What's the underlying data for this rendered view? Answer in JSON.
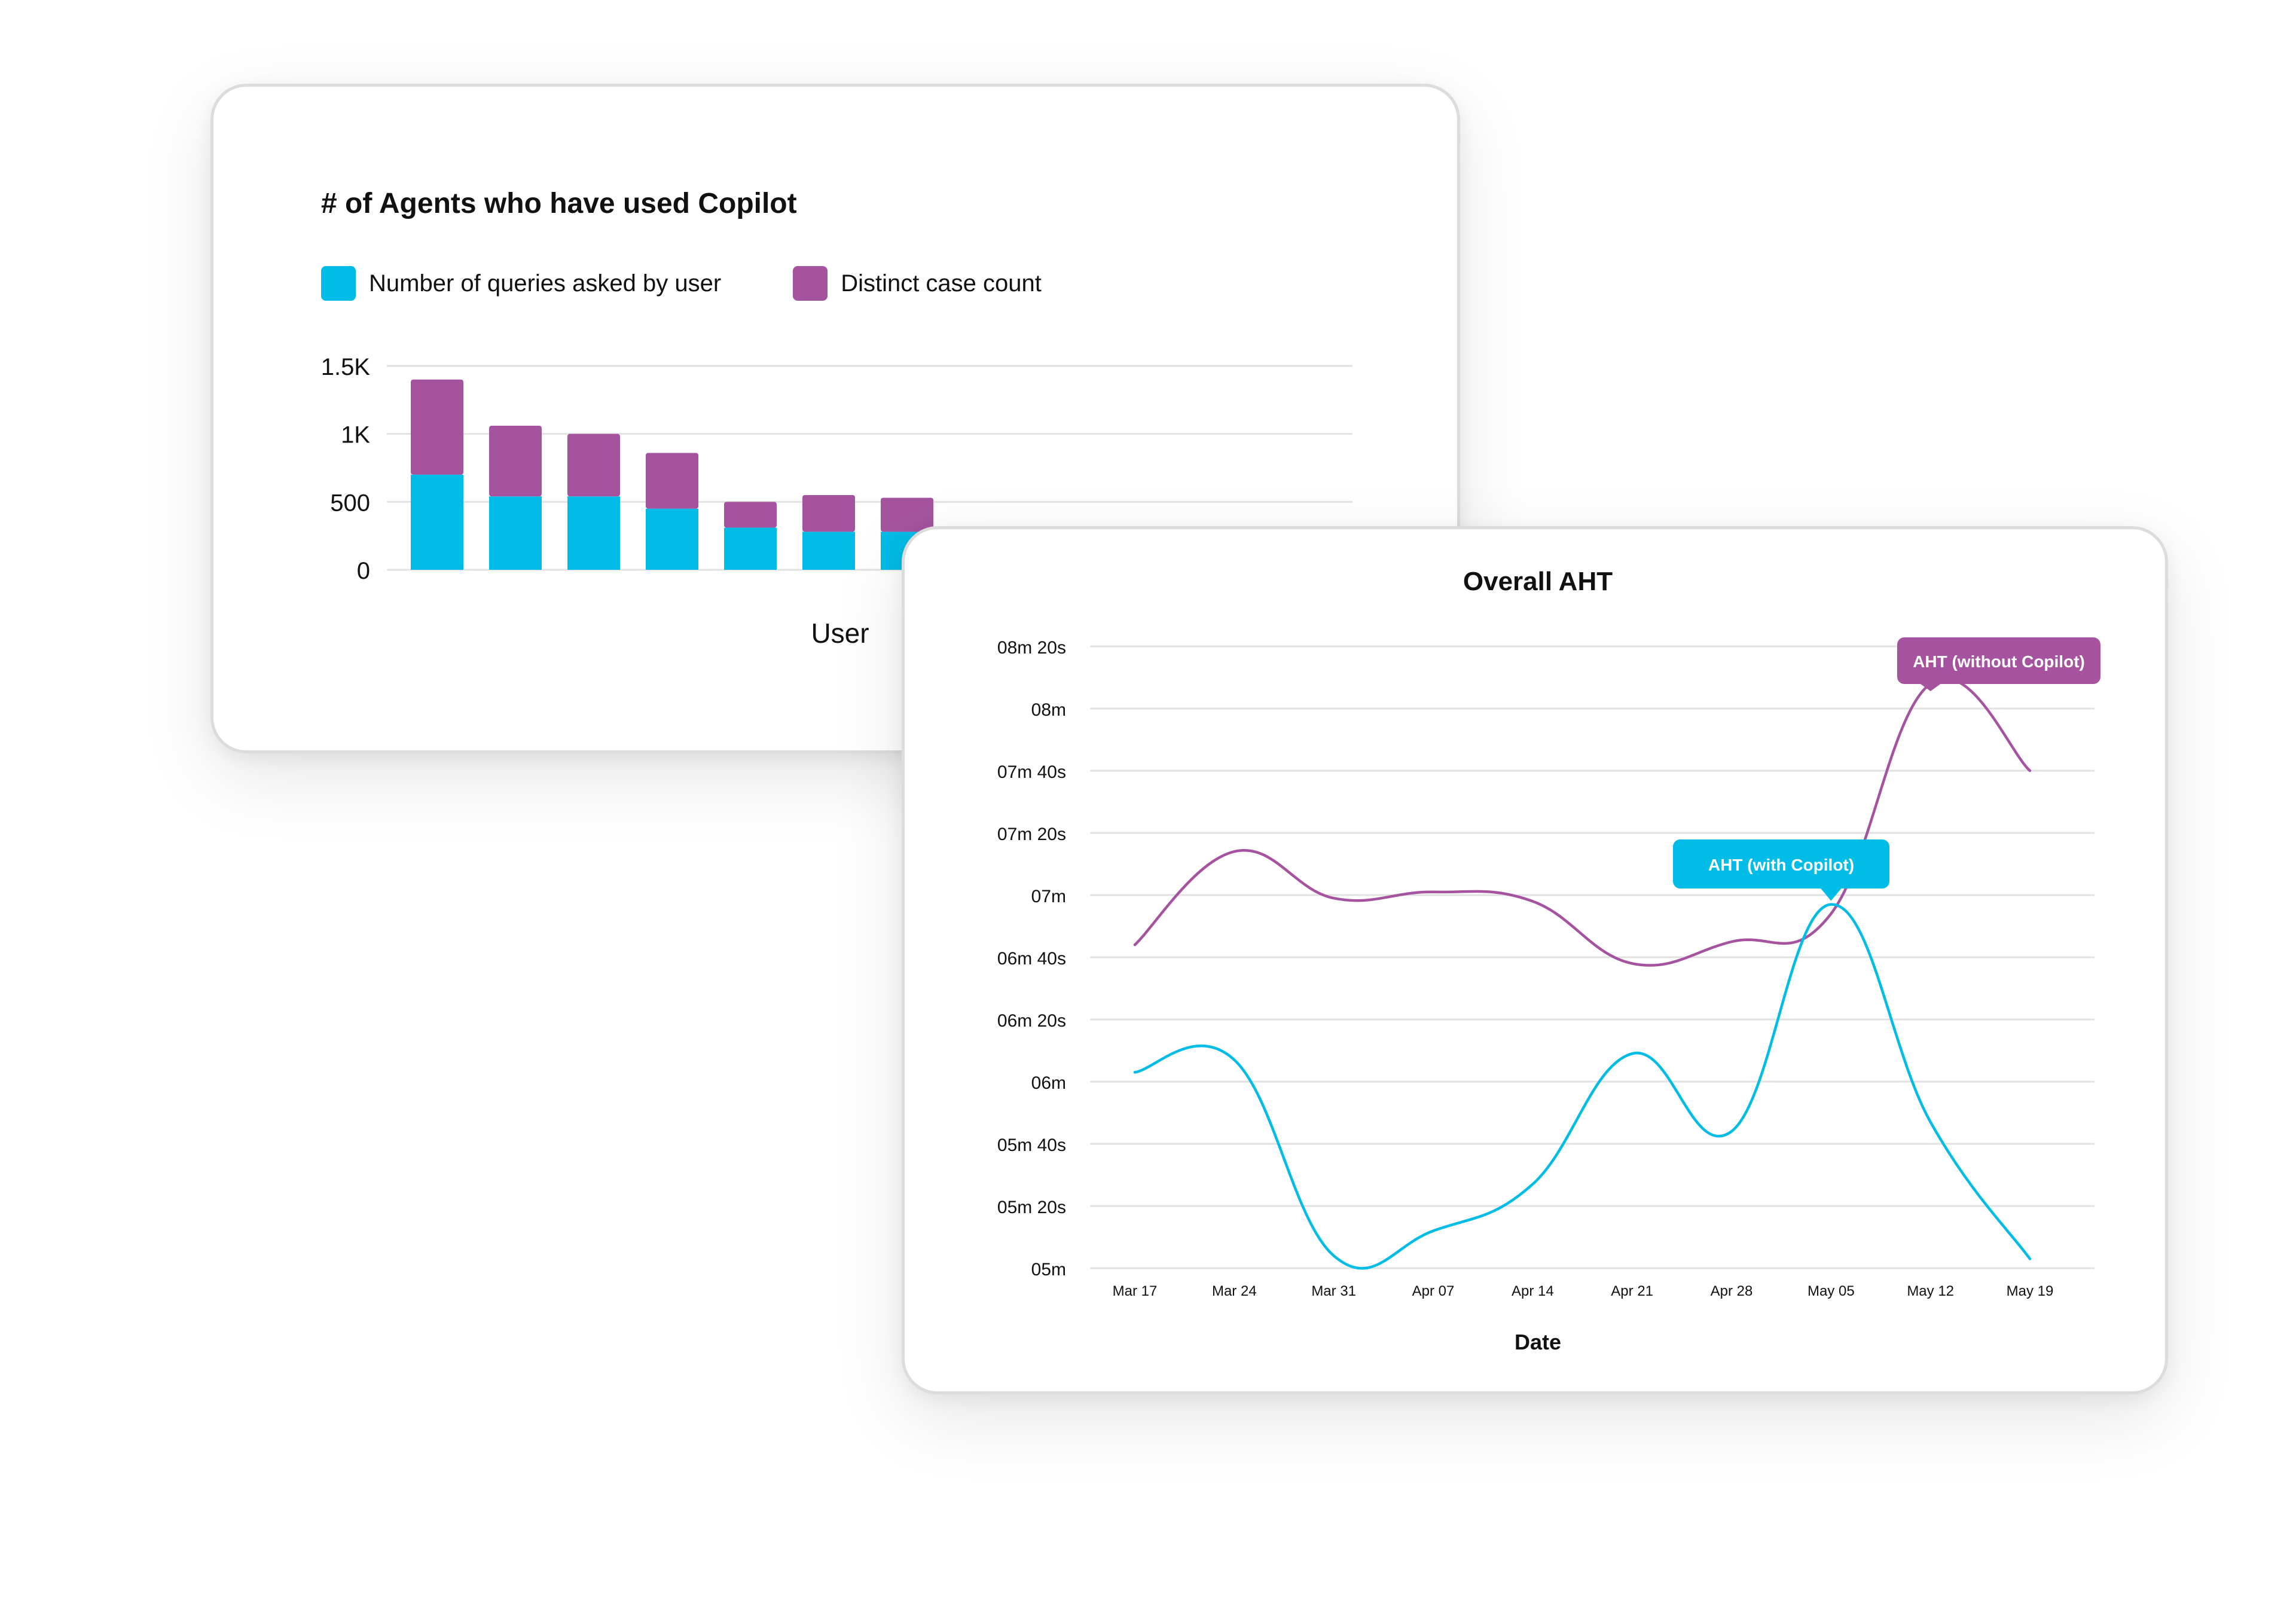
{
  "colors": {
    "cyan": "#00bce6",
    "purple": "#a5539f",
    "grid": "#e2e2e2",
    "text": "#111111"
  },
  "chart_data": [
    {
      "type": "bar",
      "stacked": true,
      "title": "# of Agents who have used Copilot",
      "xlabel": "User",
      "ylabel": "",
      "ylim": [
        0,
        1500
      ],
      "y_ticks": [
        "0",
        "500",
        "1K",
        "1.5K"
      ],
      "y_tick_values": [
        0,
        500,
        1000,
        1500
      ],
      "grid": true,
      "legend_position": "top-left",
      "categories": [
        "",
        "",
        "",
        "",
        "",
        "",
        ""
      ],
      "series": [
        {
          "name": "Number of queries asked by user",
          "color": "#00bce6",
          "values": [
            700,
            540,
            540,
            450,
            310,
            280,
            280
          ]
        },
        {
          "name": "Distinct case count",
          "color": "#a5539f",
          "values": [
            700,
            520,
            460,
            410,
            190,
            270,
            250
          ]
        }
      ]
    },
    {
      "type": "line",
      "title": "Overall AHT",
      "xlabel": "Date",
      "ylabel": "",
      "x": [
        "Mar 17",
        "Mar 24",
        "Mar 31",
        "Apr 07",
        "Apr 14",
        "Apr 21",
        "Apr 28",
        "May 05",
        "May 12",
        "May 19"
      ],
      "y_ticks": [
        "05m",
        "05m 20s",
        "05m 40s",
        "06m",
        "06m 20s",
        "06m 40s",
        "07m",
        "07m 20s",
        "07m 40s",
        "08m",
        "08m 20s"
      ],
      "y_unit": "seconds",
      "ylim": [
        300,
        500
      ],
      "grid": true,
      "series": [
        {
          "name": "AHT (without Copilot)",
          "color": "#a5539f",
          "values": [
            404,
            434,
            419,
            421,
            418,
            398,
            405,
            414,
            488,
            460
          ]
        },
        {
          "name": "AHT (with Copilot)",
          "color": "#00bce6",
          "values": [
            363,
            367,
            304,
            312,
            327,
            369,
            344,
            417,
            347,
            303
          ]
        }
      ],
      "annotations": [
        {
          "text": "AHT (without Copilot)",
          "x": "May 12",
          "color": "#a5539f"
        },
        {
          "text": "AHT (with Copilot)",
          "x": "May 05",
          "color": "#00bce6"
        }
      ]
    }
  ]
}
